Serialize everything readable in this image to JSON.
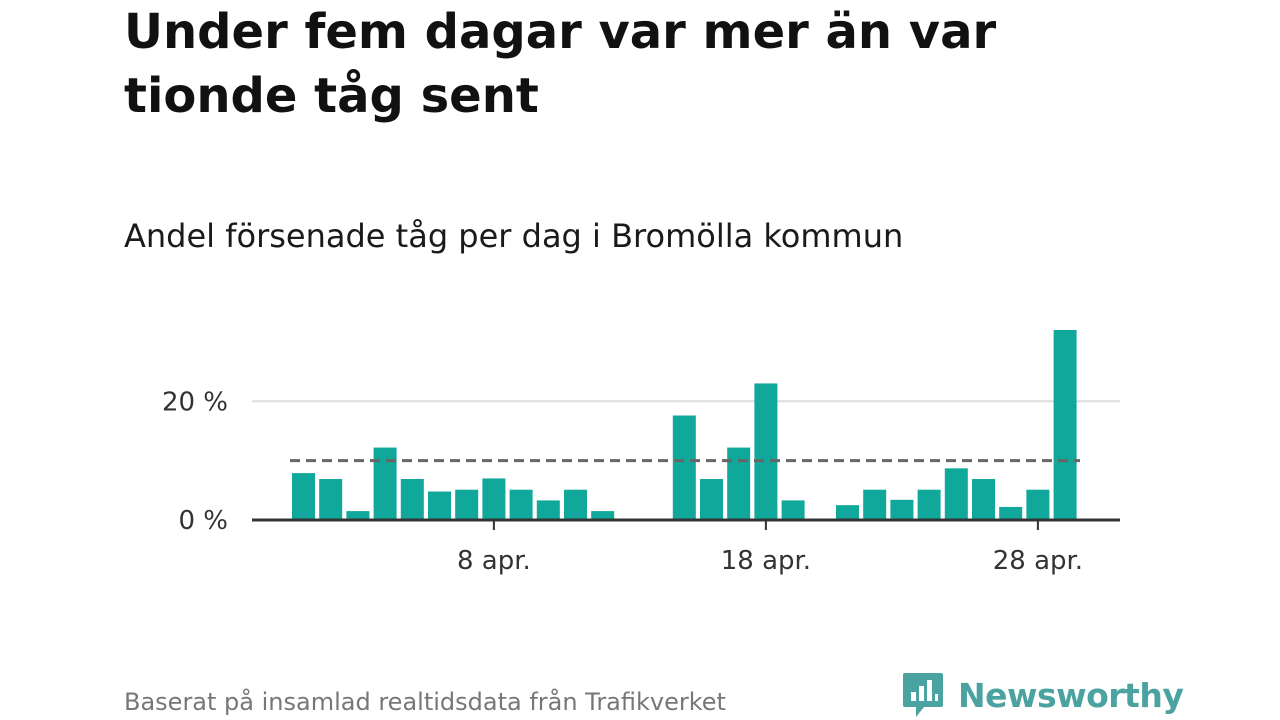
{
  "title": "Under fem dagar var mer än var tionde tåg sent",
  "subtitle": "Andel försenade tåg per dag i Bromölla kommun",
  "footer": "Baserat på insamlad realtidsdata från Trafikverket",
  "brand": {
    "name": "Newsworthy",
    "icon": "newsworthy-logo-icon",
    "color": "#4aa3a0"
  },
  "colors": {
    "bar": "#0fa89a",
    "reference_line": "#666666",
    "grid": "#dddddd",
    "axis": "#333333"
  },
  "chart_data": {
    "type": "bar",
    "x_start": "1 apr.",
    "values": [
      7.9,
      6.9,
      1.5,
      12.2,
      6.9,
      4.8,
      5.1,
      7.0,
      5.1,
      3.3,
      5.1,
      1.5,
      null,
      null,
      17.6,
      6.9,
      12.2,
      23.0,
      3.3,
      null,
      2.5,
      5.1,
      3.4,
      5.1,
      8.7,
      6.9,
      2.2,
      5.1,
      32.0
    ],
    "reference_line": 10,
    "ylim": [
      0,
      32
    ],
    "yticks": [
      {
        "value": 0,
        "label": "0 %"
      },
      {
        "value": 20,
        "label": "20 %"
      }
    ],
    "xticks": [
      {
        "index": 7,
        "label": "8 apr."
      },
      {
        "index": 17,
        "label": "18 apr."
      },
      {
        "index": 27,
        "label": "28 apr."
      }
    ],
    "grid": true,
    "legend": "none"
  }
}
